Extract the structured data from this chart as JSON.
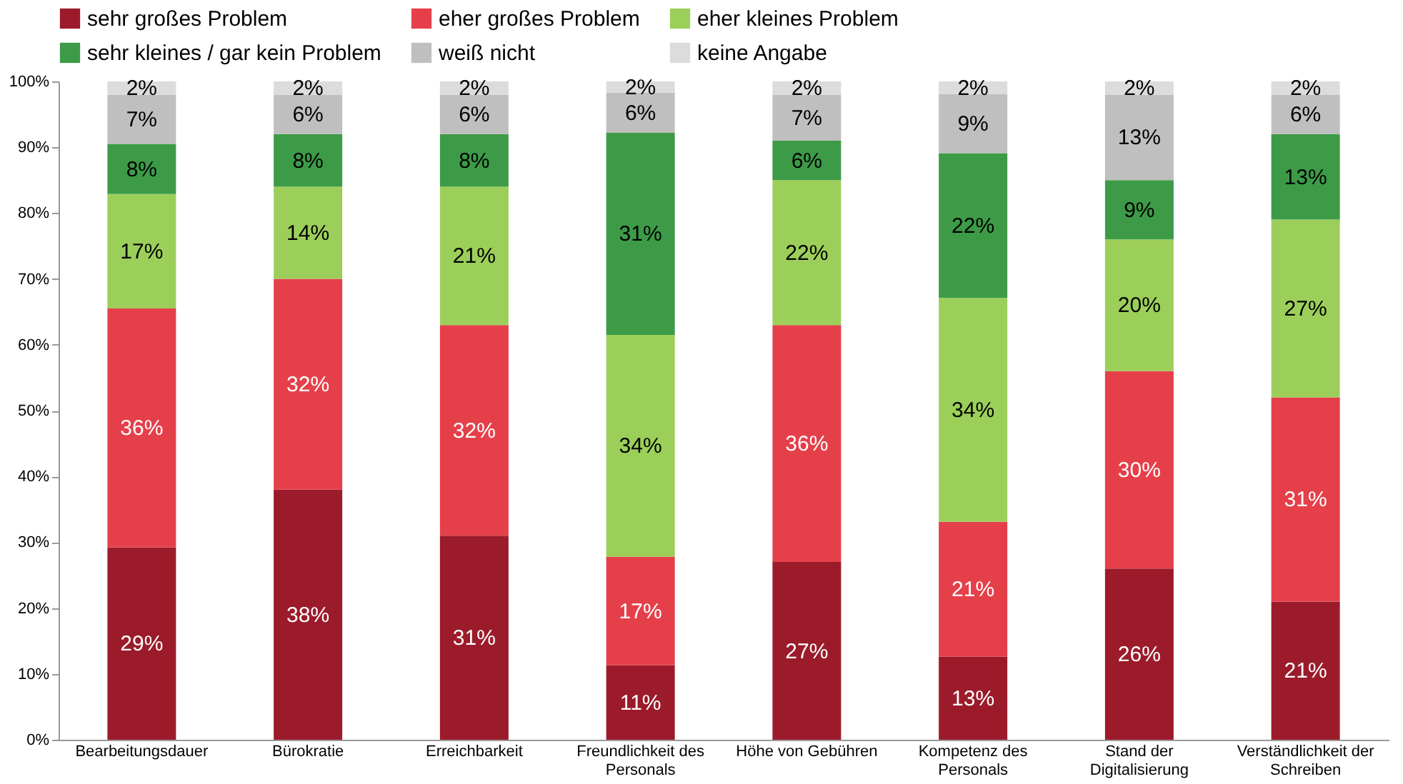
{
  "chart_data": {
    "type": "bar",
    "stacked": true,
    "categories": [
      "Bearbeitungsdauer",
      "Bürokratie",
      "Erreichbarkeit",
      "Freundlichkeit des Personals",
      "Höhe von Gebühren",
      "Kompetenz des Personals",
      "Stand der Digitalisierung",
      "Verständlichkeit der Schreiben"
    ],
    "series": [
      {
        "name": "sehr großes Problem",
        "color": "#9b1b2a",
        "values": [
          29.2,
          38,
          31,
          11.3,
          27,
          12.6,
          26,
          21
        ],
        "value_labels": [
          "29%",
          "38%",
          "31%",
          "11%",
          "27%",
          "13%",
          "26%",
          "21%"
        ]
      },
      {
        "name": "eher großes Problem",
        "color": "#e5404a",
        "values": [
          36.3,
          32,
          32,
          16.5,
          36,
          20.5,
          30,
          31
        ],
        "value_labels": [
          "36%",
          "32%",
          "32%",
          "17%",
          "36%",
          "21%",
          "30%",
          "31%"
        ]
      },
      {
        "name": "eher kleines Problem",
        "color": "#9ccf5a",
        "values": [
          17.4,
          14,
          21,
          33.7,
          22,
          34,
          20,
          27
        ],
        "value_labels": [
          "17%",
          "14%",
          "21%",
          "34%",
          "22%",
          "34%",
          "20%",
          "27%"
        ]
      },
      {
        "name": "sehr kleines / gar kein Problem",
        "color": "#3d9b47",
        "values": [
          7.6,
          8,
          8,
          30.7,
          6,
          22,
          9,
          13
        ],
        "value_labels": [
          "8%",
          "8%",
          "8%",
          "31%",
          "6%",
          "22%",
          "9%",
          "13%"
        ]
      },
      {
        "name": "weiß nicht",
        "color": "#bfbfbf",
        "values": [
          7.5,
          6,
          6,
          6.1,
          7,
          9,
          13,
          6
        ],
        "value_labels": [
          "7%",
          "6%",
          "6%",
          "6%",
          "7%",
          "9%",
          "13%",
          "6%"
        ]
      },
      {
        "name": "keine Angabe",
        "color": "#dcdcdc",
        "values": [
          2,
          2,
          2,
          1.7,
          2,
          1.9,
          2,
          2
        ],
        "value_labels": [
          "2%",
          "2%",
          "2%",
          "2%",
          "2%",
          "2%",
          "2%",
          "2%"
        ]
      }
    ],
    "ylim": [
      0,
      100
    ],
    "yticks": [
      {
        "value": 0,
        "label": "0%"
      },
      {
        "value": 10,
        "label": "10%"
      },
      {
        "value": 20,
        "label": "20%"
      },
      {
        "value": 30,
        "label": "30%"
      },
      {
        "value": 40,
        "label": "40%"
      },
      {
        "value": 50,
        "label": "50%"
      },
      {
        "value": 60,
        "label": "60%"
      },
      {
        "value": 70,
        "label": "70%"
      },
      {
        "value": 80,
        "label": "80%"
      },
      {
        "value": 90,
        "label": "90%"
      },
      {
        "value": 100,
        "label": "100%"
      }
    ],
    "grid": false,
    "legend": "top"
  }
}
